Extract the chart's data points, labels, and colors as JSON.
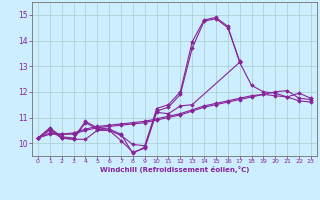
{
  "bg_color": "#cceeff",
  "grid_color": "#aacccc",
  "line_color": "#882299",
  "xlim": [
    -0.5,
    23.5
  ],
  "ylim": [
    9.5,
    15.5
  ],
  "xticks": [
    0,
    1,
    2,
    3,
    4,
    5,
    6,
    7,
    8,
    9,
    10,
    11,
    12,
    13,
    14,
    15,
    16,
    17,
    18,
    19,
    20,
    21,
    22,
    23
  ],
  "yticks": [
    10,
    11,
    12,
    13,
    14,
    15
  ],
  "xlabel": "Windchill (Refroidissement éolien,°C)",
  "figsize": [
    3.2,
    2.0
  ],
  "dpi": 100,
  "series": [
    {
      "x": [
        0,
        1,
        2,
        3,
        4,
        5,
        6,
        7,
        8,
        9,
        10,
        11,
        12,
        13,
        14,
        15,
        16,
        17
      ],
      "y": [
        10.2,
        10.6,
        10.25,
        10.2,
        10.85,
        10.6,
        10.55,
        10.35,
        9.6,
        9.85,
        11.35,
        11.5,
        12.0,
        13.95,
        14.8,
        14.9,
        14.55,
        13.15
      ]
    },
    {
      "x": [
        0,
        1,
        2,
        3,
        4,
        5,
        6,
        7,
        8,
        9,
        10,
        11,
        12,
        13,
        14,
        15,
        16,
        17
      ],
      "y": [
        10.2,
        10.55,
        10.2,
        10.15,
        10.8,
        10.55,
        10.5,
        10.3,
        9.95,
        9.9,
        11.25,
        11.4,
        11.9,
        13.7,
        14.75,
        14.85,
        14.5,
        13.2
      ]
    },
    {
      "x": [
        0,
        1,
        2,
        3,
        4,
        5,
        6,
        7,
        8,
        9,
        10,
        11,
        12,
        13,
        17,
        18,
        19,
        20,
        21,
        22,
        23
      ],
      "y": [
        10.2,
        10.5,
        10.2,
        10.15,
        10.15,
        10.5,
        10.5,
        10.1,
        9.65,
        9.8,
        11.2,
        11.15,
        11.45,
        11.5,
        13.15,
        12.25,
        12.0,
        11.95,
        11.8,
        11.95,
        11.75
      ]
    },
    {
      "x": [
        0,
        1,
        2,
        3,
        4,
        5,
        6,
        7,
        8,
        9,
        10,
        11,
        12,
        13,
        14,
        15,
        16,
        17,
        18,
        19,
        20,
        21,
        22,
        23
      ],
      "y": [
        10.2,
        10.35,
        10.35,
        10.35,
        10.5,
        10.6,
        10.65,
        10.7,
        10.75,
        10.8,
        10.9,
        11.0,
        11.1,
        11.25,
        11.4,
        11.5,
        11.6,
        11.7,
        11.8,
        11.9,
        12.0,
        12.05,
        11.75,
        11.7
      ]
    },
    {
      "x": [
        0,
        1,
        2,
        3,
        4,
        5,
        6,
        7,
        8,
        9,
        10,
        11,
        12,
        13,
        14,
        15,
        16,
        17,
        18,
        19,
        20,
        21,
        22,
        23
      ],
      "y": [
        10.2,
        10.4,
        10.35,
        10.4,
        10.55,
        10.65,
        10.7,
        10.75,
        10.8,
        10.85,
        10.95,
        11.05,
        11.15,
        11.3,
        11.45,
        11.55,
        11.65,
        11.75,
        11.85,
        11.9,
        11.85,
        11.8,
        11.65,
        11.6
      ]
    }
  ]
}
